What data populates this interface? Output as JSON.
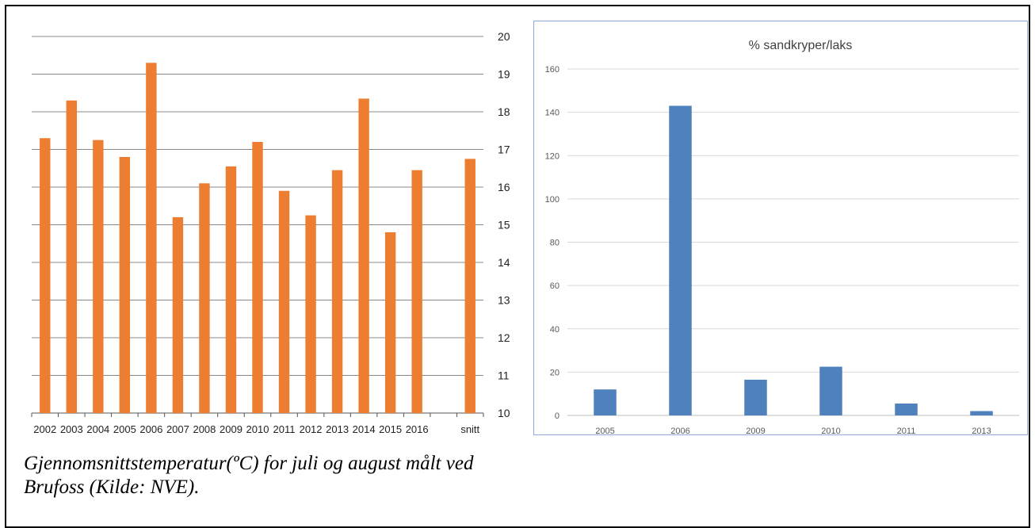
{
  "chart_data": [
    {
      "type": "bar",
      "categories": [
        "2002",
        "2003",
        "2004",
        "2005",
        "2006",
        "2007",
        "2008",
        "2009",
        "2010",
        "2011",
        "2012",
        "2013",
        "2014",
        "2015",
        "2016",
        "",
        "snitt"
      ],
      "values": [
        17.3,
        18.3,
        17.25,
        16.8,
        19.3,
        15.2,
        16.1,
        16.55,
        17.2,
        15.9,
        15.25,
        16.45,
        18.35,
        14.8,
        16.45,
        null,
        16.75
      ],
      "title": "",
      "xlabel": "",
      "ylabel": "",
      "ylim": [
        10,
        20
      ],
      "yticks": [
        "10",
        "11",
        "12",
        "13",
        "14",
        "15",
        "16",
        "17",
        "18",
        "19",
        "20"
      ],
      "y_axis_side": "right",
      "grid": true,
      "color": "#ed7d31"
    },
    {
      "type": "bar",
      "categories": [
        "2005",
        "2006",
        "2009",
        "2010",
        "2011",
        "2013"
      ],
      "values": [
        12,
        143,
        16.5,
        22.5,
        5.5,
        2
      ],
      "title": "% sandkryper/laks",
      "xlabel": "",
      "ylabel": "",
      "ylim": [
        0,
        160
      ],
      "yticks": [
        "0",
        "20",
        "40",
        "60",
        "80",
        "100",
        "120",
        "140",
        "160"
      ],
      "y_axis_side": "left",
      "grid": true,
      "color": "#4f81bd"
    }
  ],
  "caption": {
    "line1": "Gjennomsnittstemperatur(ºC) for juli og august målt ved",
    "line2": "Brufoss (Kilde: NVE)."
  }
}
